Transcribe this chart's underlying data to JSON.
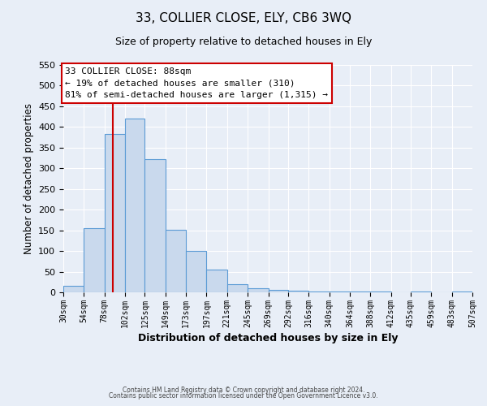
{
  "title": "33, COLLIER CLOSE, ELY, CB6 3WQ",
  "subtitle": "Size of property relative to detached houses in Ely",
  "xlabel": "Distribution of detached houses by size in Ely",
  "ylabel": "Number of detached properties",
  "bar_color": "#c9d9ed",
  "bar_edge_color": "#5b9bd5",
  "bin_edges": [
    30,
    54,
    78,
    102,
    125,
    149,
    173,
    197,
    221,
    245,
    269,
    292,
    316,
    340,
    364,
    388,
    412,
    435,
    459,
    483,
    507
  ],
  "bar_heights": [
    15,
    155,
    383,
    420,
    322,
    152,
    100,
    55,
    20,
    10,
    5,
    3,
    2,
    1,
    1,
    1,
    0,
    1,
    0,
    2
  ],
  "tick_labels": [
    "30sqm",
    "54sqm",
    "78sqm",
    "102sqm",
    "125sqm",
    "149sqm",
    "173sqm",
    "197sqm",
    "221sqm",
    "245sqm",
    "269sqm",
    "292sqm",
    "316sqm",
    "340sqm",
    "364sqm",
    "388sqm",
    "412sqm",
    "435sqm",
    "459sqm",
    "483sqm",
    "507sqm"
  ],
  "ylim": [
    0,
    550
  ],
  "yticks": [
    0,
    50,
    100,
    150,
    200,
    250,
    300,
    350,
    400,
    450,
    500,
    550
  ],
  "property_line_x": 88,
  "property_line_color": "#cc0000",
  "annotation_title": "33 COLLIER CLOSE: 88sqm",
  "annotation_line1": "← 19% of detached houses are smaller (310)",
  "annotation_line2": "81% of semi-detached houses are larger (1,315) →",
  "annotation_box_color": "#ffffff",
  "annotation_box_edge": "#cc0000",
  "footer1": "Contains HM Land Registry data © Crown copyright and database right 2024.",
  "footer2": "Contains public sector information licensed under the Open Government Licence v3.0.",
  "background_color": "#e8eef7",
  "grid_color": "#ffffff"
}
